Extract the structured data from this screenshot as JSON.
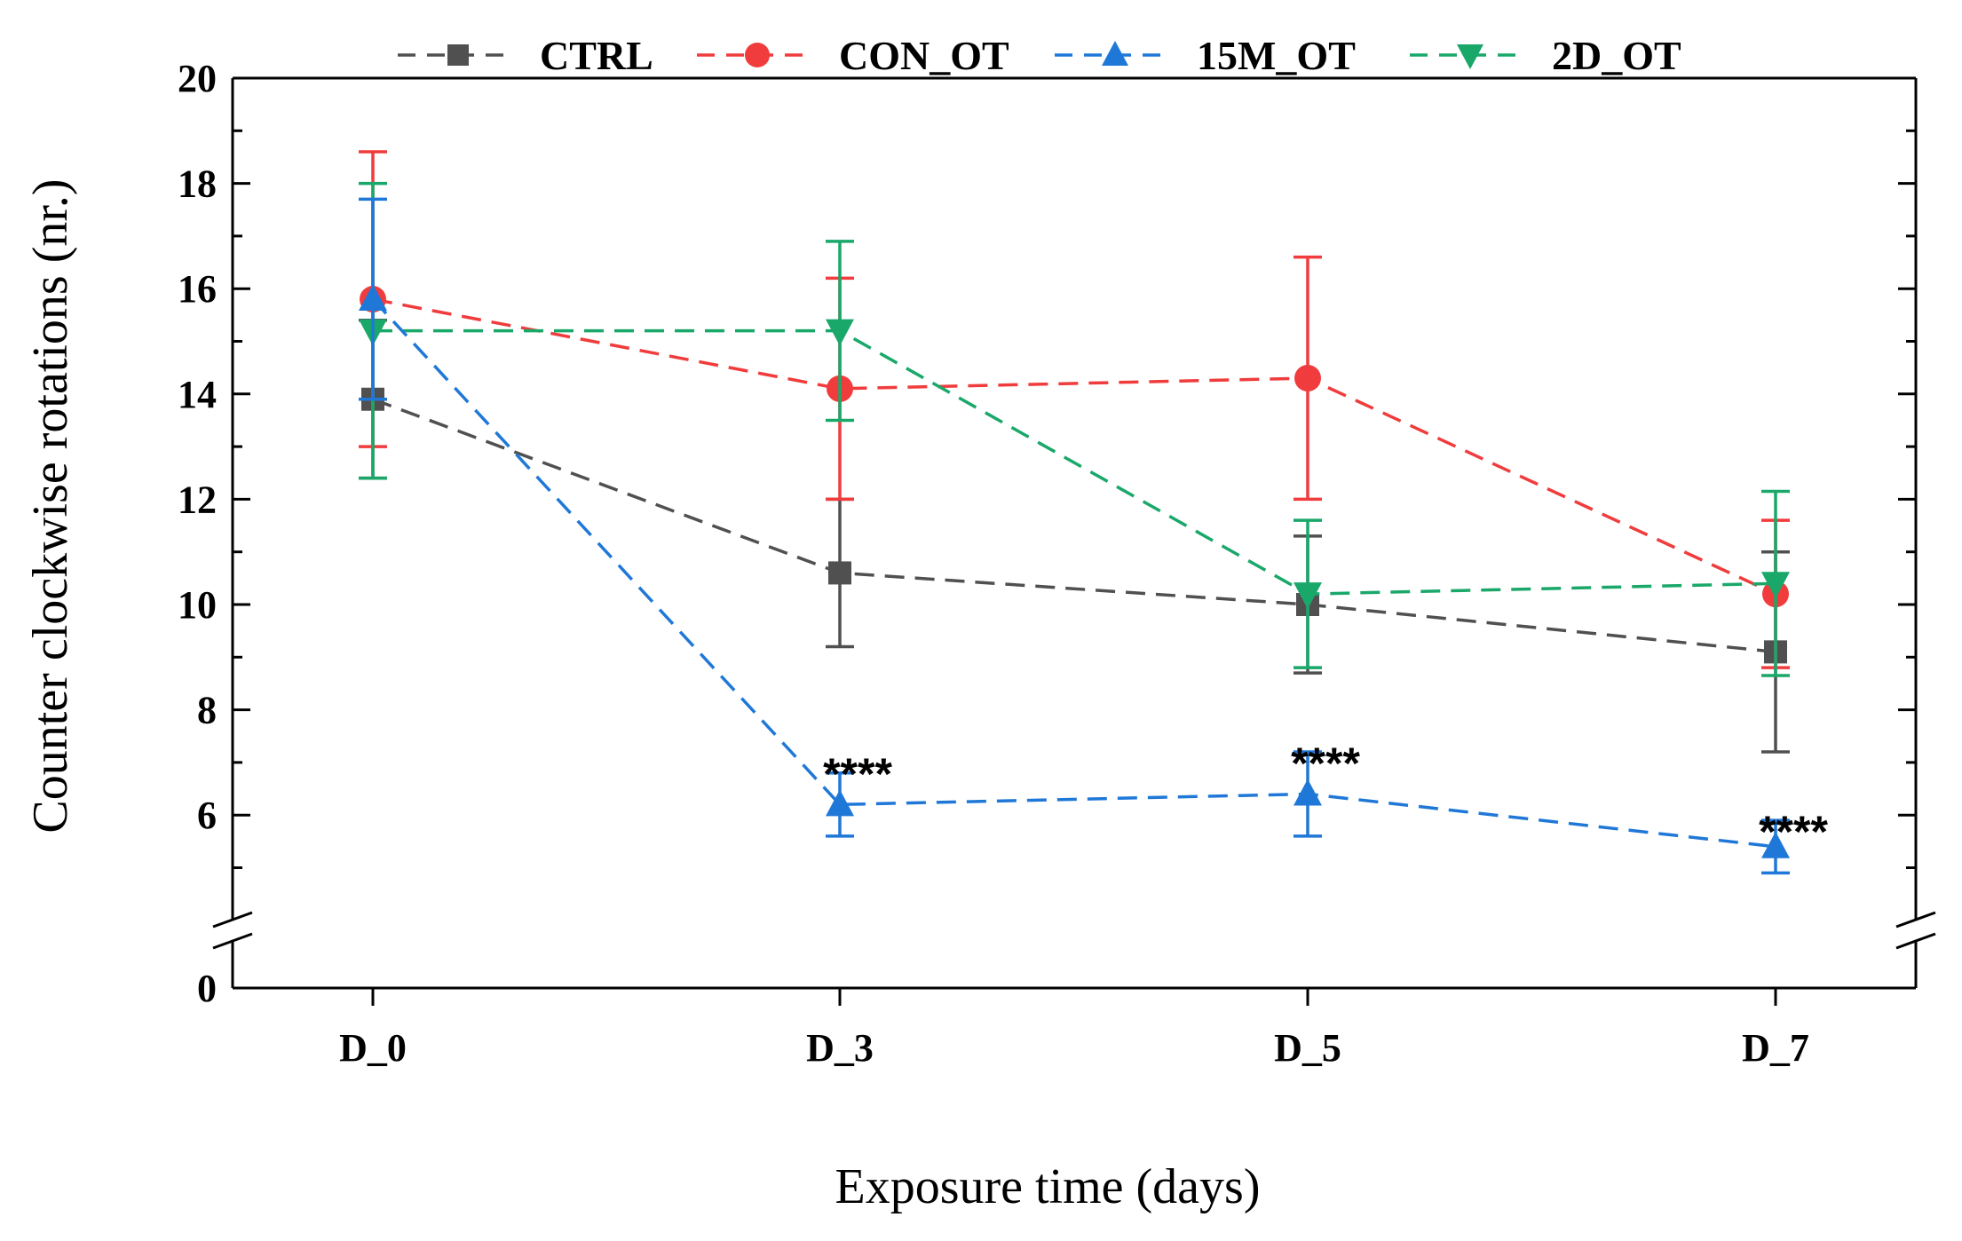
{
  "chart_data": {
    "type": "line",
    "title": "",
    "xlabel": "Exposure time (days)",
    "ylabel": "Counter clockwise rotations (nr.)",
    "categories": [
      "D_0",
      "D_3",
      "D_5",
      "D_7"
    ],
    "y_ticks_upper": [
      6,
      8,
      10,
      12,
      14,
      16,
      18,
      20
    ],
    "y_tick_lower": 0,
    "ylim_upper": [
      4,
      20
    ],
    "axis_break": true,
    "legend_position": "top",
    "series": [
      {
        "name": "CTRL",
        "color": "#505050",
        "marker": "square",
        "values": [
          13.9,
          10.6,
          10.0,
          9.1
        ],
        "errors": [
          1.5,
          1.4,
          1.3,
          1.9
        ]
      },
      {
        "name": "CON_OT",
        "color": "#f03c3c",
        "marker": "circle",
        "values": [
          15.8,
          14.1,
          14.3,
          10.2
        ],
        "errors": [
          2.8,
          2.1,
          2.3,
          1.4
        ]
      },
      {
        "name": "15M_OT",
        "color": "#1f78d8",
        "marker": "triangle-up",
        "values": [
          15.8,
          6.2,
          6.4,
          5.4
        ],
        "errors": [
          1.9,
          0.6,
          0.8,
          0.5
        ]
      },
      {
        "name": "2D_OT",
        "color": "#1aa86a",
        "marker": "triangle-down",
        "values": [
          15.2,
          15.2,
          10.2,
          10.4
        ],
        "errors": [
          2.8,
          1.7,
          1.4,
          1.75
        ]
      }
    ],
    "annotations": [
      {
        "category": "D_3",
        "text": "****",
        "y": 7.0
      },
      {
        "category": "D_5",
        "text": "****",
        "y": 7.2
      },
      {
        "category": "D_7",
        "text": "****",
        "y": 5.9
      }
    ]
  }
}
